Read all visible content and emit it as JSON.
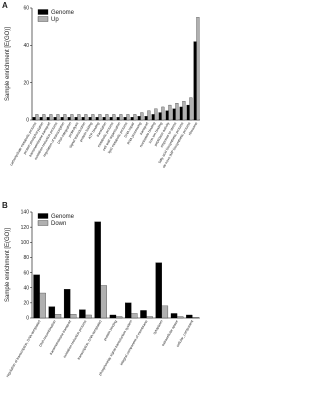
{
  "chart_data": [
    {
      "type": "bar",
      "panel": "A",
      "ylabel": "Sample enrichment [E(GO)]",
      "categories": [
        "carbohydrate metabolic process",
        "protein phosphorylation",
        "transmembrane transport",
        "oxidation-reduction process",
        "regulation of transcription",
        "DNA integration",
        "proteolysis",
        "signal transduction",
        "protein folding",
        "ATP binding",
        "translation",
        "metabolic process",
        "cell wall organization",
        "lipid metabolic process",
        "DNA repair",
        "RNA processing",
        "transport",
        "nucleotide binding",
        "iron ion binding",
        "peptidase activity",
        "response to stress",
        "fatty acid biosynthetic process",
        "de novo IMP biosynthetic process",
        "ribosome"
      ],
      "series": [
        {
          "name": "Genome",
          "color": "#000000",
          "values": [
            1.5,
            1.5,
            1.5,
            1.5,
            1.5,
            1.5,
            1.5,
            1.5,
            1.5,
            1.5,
            1.5,
            1.5,
            1.5,
            1.5,
            1.5,
            2,
            2,
            3,
            4,
            5,
            6,
            7,
            8,
            42
          ]
        },
        {
          "name": "Up",
          "color": "#b0b0b0",
          "values": [
            3,
            3,
            3,
            3,
            3,
            3,
            3,
            3,
            3,
            3,
            3,
            3,
            3,
            3,
            3,
            4,
            5,
            6,
            7,
            8,
            9,
            10,
            12,
            55
          ]
        }
      ],
      "ylim": [
        0,
        60
      ],
      "yticks": [
        0,
        20,
        40,
        60
      ],
      "legend": "upper-left"
    },
    {
      "type": "bar",
      "panel": "B",
      "ylabel": "Sample enrichment [E(GO)]",
      "categories": [
        "regulation of transcription, DNA-templated",
        "DNA recombination",
        "transmembrane transport",
        "oxidation-reduction process",
        "transcription, DNA-templated",
        "protein binding",
        "phosphorelay signal transduction system",
        "integral component of membrane",
        "cytoplasm",
        "extracellular space",
        "cellular_component"
      ],
      "series": [
        {
          "name": "Genome",
          "color": "#000000",
          "values": [
            57,
            15,
            38,
            11,
            127,
            4,
            20,
            10,
            73,
            6,
            4
          ]
        },
        {
          "name": "Down",
          "color": "#b0b0b0",
          "values": [
            33,
            5,
            5,
            4,
            43,
            2,
            6,
            2,
            16,
            2,
            1
          ]
        }
      ],
      "ylim": [
        0,
        140
      ],
      "yticks": [
        0,
        20,
        40,
        60,
        80,
        100,
        120,
        140
      ],
      "legend": "upper-left"
    }
  ]
}
